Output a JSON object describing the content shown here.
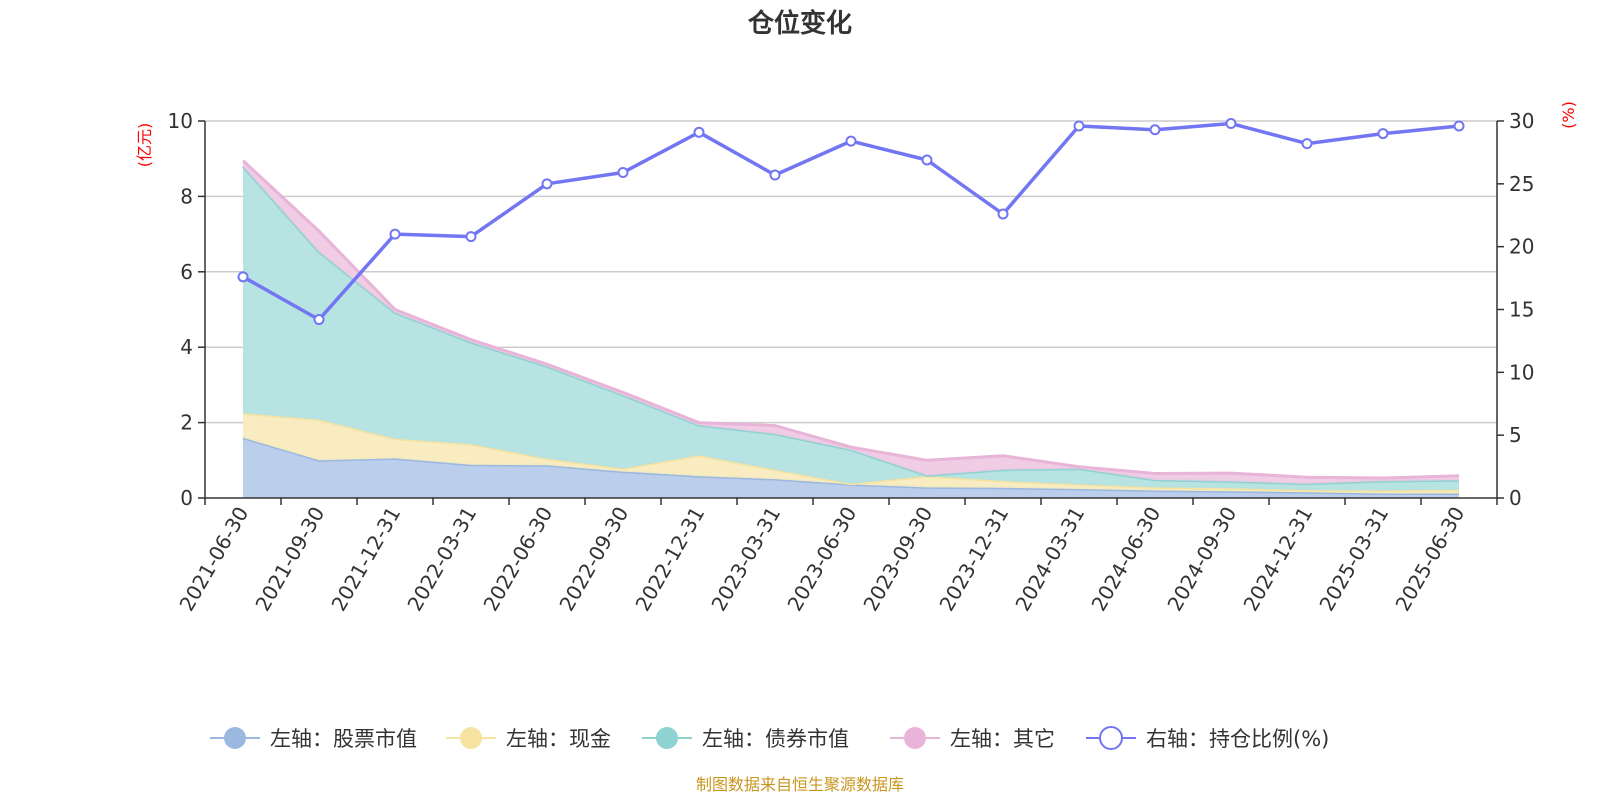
{
  "chart_data": {
    "type": "area",
    "title": "仓位变化",
    "source_note": "制图数据来自恒生聚源数据库",
    "y_left_label": "(亿元)",
    "y_right_label": "(%)",
    "ylim_left": [
      0,
      10
    ],
    "ylim_right": [
      0,
      30
    ],
    "y_left_ticks": [
      0,
      2,
      4,
      6,
      8,
      10
    ],
    "y_right_ticks": [
      0,
      5,
      10,
      15,
      20,
      25,
      30
    ],
    "grid": true,
    "legend_position": "bottom",
    "categories": [
      "2021-06-30",
      "2021-09-30",
      "2021-12-31",
      "2022-03-31",
      "2022-06-30",
      "2022-09-30",
      "2022-12-31",
      "2023-03-31",
      "2023-06-30",
      "2023-09-30",
      "2023-12-31",
      "2024-03-31",
      "2024-06-30",
      "2024-09-30",
      "2024-12-31",
      "2025-03-31",
      "2025-06-30"
    ],
    "series": [
      {
        "name": "左轴：股票市值",
        "type": "area",
        "axis": "left",
        "color": "#9ab8e0",
        "fill": "#b7cbea",
        "values": [
          1.6,
          1.0,
          1.05,
          0.88,
          0.87,
          0.7,
          0.58,
          0.5,
          0.36,
          0.28,
          0.27,
          0.24,
          0.2,
          0.18,
          0.15,
          0.12,
          0.12
        ]
      },
      {
        "name": "左轴：现金",
        "type": "area",
        "axis": "left",
        "color": "#f6e3a1",
        "fill": "#f8ebbd",
        "values": [
          0.65,
          1.08,
          0.52,
          0.55,
          0.17,
          0.08,
          0.55,
          0.25,
          0.02,
          0.3,
          0.18,
          0.12,
          0.08,
          0.08,
          0.06,
          0.08,
          0.1
        ]
      },
      {
        "name": "左轴：债券市值",
        "type": "area",
        "axis": "left",
        "color": "#8fd2d2",
        "fill": "#b3e1e1",
        "values": [
          6.55,
          4.45,
          3.35,
          2.7,
          2.45,
          1.95,
          0.8,
          0.95,
          0.9,
          0.02,
          0.3,
          0.42,
          0.2,
          0.18,
          0.17,
          0.25,
          0.25
        ]
      },
      {
        "name": "左轴：其它",
        "type": "area",
        "axis": "left",
        "color": "#e8b4d8",
        "fill": "#efc9e4",
        "values": [
          0.15,
          0.55,
          0.08,
          0.07,
          0.06,
          0.07,
          0.07,
          0.22,
          0.07,
          0.4,
          0.37,
          0.05,
          0.17,
          0.22,
          0.17,
          0.08,
          0.12
        ]
      },
      {
        "name": "右轴：持仓比例(%)",
        "type": "line",
        "axis": "right",
        "color": "#7276f2",
        "values": [
          17.6,
          14.2,
          21.0,
          20.8,
          25.0,
          25.9,
          29.1,
          25.7,
          28.4,
          26.9,
          22.6,
          29.6,
          29.3,
          29.8,
          28.2,
          29.0,
          29.6
        ]
      }
    ]
  }
}
